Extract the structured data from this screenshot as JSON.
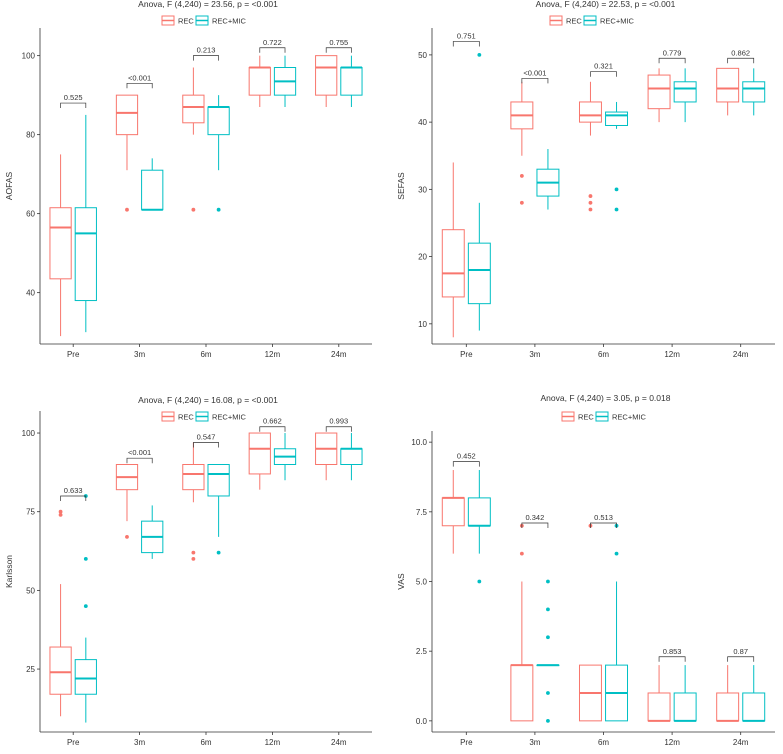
{
  "colors": {
    "rec": "#F8766D",
    "rec_mic": "#00BFC4",
    "axis": "#333333"
  },
  "chart_data": [
    {
      "type": "box",
      "title": "Anova, F (4,240) = 23.56, p = <0.001",
      "ylabel": "AOFAS",
      "legend": [
        "REC",
        "REC+MIC"
      ],
      "categories": [
        "Pre",
        "3m",
        "6m",
        "12m",
        "24m"
      ],
      "ylim": [
        27,
        107
      ],
      "yticks": [
        40,
        60,
        80,
        100
      ],
      "ytick_labels": [
        "40",
        "60",
        "80",
        "100"
      ],
      "series": [
        {
          "name": "REC",
          "boxes": [
            {
              "min": 29,
              "q1": 43.5,
              "median": 56.5,
              "q3": 61.5,
              "max": 75,
              "outliers": []
            },
            {
              "min": 71,
              "q1": 80,
              "median": 85.5,
              "q3": 90,
              "max": 90,
              "outliers": [
                61
              ]
            },
            {
              "min": 80,
              "q1": 83,
              "median": 87,
              "q3": 90,
              "max": 97,
              "outliers": [
                61
              ]
            },
            {
              "min": 87,
              "q1": 90,
              "median": 97,
              "q3": 97,
              "max": 100,
              "outliers": []
            },
            {
              "min": 87,
              "q1": 90,
              "median": 97,
              "q3": 100,
              "max": 100,
              "outliers": []
            }
          ]
        },
        {
          "name": "REC+MIC",
          "boxes": [
            {
              "min": 30,
              "q1": 38,
              "median": 55,
              "q3": 61.5,
              "max": 85,
              "outliers": []
            },
            {
              "min": 61,
              "q1": 61,
              "median": 61,
              "q3": 71,
              "max": 74,
              "outliers": []
            },
            {
              "min": 71,
              "q1": 80,
              "median": 87,
              "q3": 87,
              "max": 90,
              "outliers": [
                61
              ]
            },
            {
              "min": 87,
              "q1": 90,
              "median": 93.5,
              "q3": 97,
              "max": 100,
              "outliers": []
            },
            {
              "min": 87,
              "q1": 90,
              "median": 97,
              "q3": 97,
              "max": 100,
              "outliers": []
            }
          ]
        }
      ],
      "pvalues": [
        {
          "label": "0.525",
          "y": 88
        },
        {
          "label": "<0.001",
          "y": 93
        },
        {
          "label": "0.213",
          "y": 100
        },
        {
          "label": "0.722",
          "y": 102
        },
        {
          "label": "0.755",
          "y": 102
        }
      ]
    },
    {
      "type": "box",
      "title": "Anova, F (4,240) = 22.53, p = <0.001",
      "ylabel": "SEFAS",
      "legend": [
        "REC",
        "REC+MIC"
      ],
      "categories": [
        "Pre",
        "3m",
        "6m",
        "12m",
        "24m"
      ],
      "ylim": [
        7,
        54
      ],
      "yticks": [
        10,
        20,
        30,
        40,
        50
      ],
      "ytick_labels": [
        "10",
        "20",
        "30",
        "40",
        "50"
      ],
      "series": [
        {
          "name": "REC",
          "boxes": [
            {
              "min": 8,
              "q1": 14,
              "median": 17.5,
              "q3": 24,
              "max": 34,
              "outliers": []
            },
            {
              "min": 35,
              "q1": 39,
              "median": 41,
              "q3": 43,
              "max": 46,
              "outliers": [
                32,
                28
              ]
            },
            {
              "min": 38,
              "q1": 40,
              "median": 41,
              "q3": 43,
              "max": 46,
              "outliers": [
                29,
                28,
                27
              ]
            },
            {
              "min": 40,
              "q1": 42,
              "median": 45,
              "q3": 47,
              "max": 48,
              "outliers": []
            },
            {
              "min": 41,
              "q1": 43,
              "median": 45,
              "q3": 48,
              "max": 48,
              "outliers": []
            }
          ]
        },
        {
          "name": "REC+MIC",
          "boxes": [
            {
              "min": 9,
              "q1": 13,
              "median": 18,
              "q3": 22,
              "max": 28,
              "outliers": [
                50
              ]
            },
            {
              "min": 27,
              "q1": 29,
              "median": 31,
              "q3": 33,
              "max": 36,
              "outliers": []
            },
            {
              "min": 39,
              "q1": 39.5,
              "median": 41,
              "q3": 41.5,
              "max": 43,
              "outliers": [
                30,
                27
              ]
            },
            {
              "min": 40,
              "q1": 43,
              "median": 45,
              "q3": 46,
              "max": 48,
              "outliers": []
            },
            {
              "min": 41,
              "q1": 43,
              "median": 45,
              "q3": 46,
              "max": 48,
              "outliers": []
            }
          ]
        }
      ],
      "pvalues": [
        {
          "label": "0.751",
          "y": 52
        },
        {
          "label": "<0.001",
          "y": 46.5
        },
        {
          "label": "0.321",
          "y": 47.5
        },
        {
          "label": "0.779",
          "y": 49.5
        },
        {
          "label": "0.862",
          "y": 49.5
        }
      ]
    },
    {
      "type": "box",
      "title": "Anova, F (4,240) = 16.08, p = <0.001",
      "ylabel": "Karlsson",
      "legend": [
        "REC",
        "REC+MIC"
      ],
      "categories": [
        "Pre",
        "3m",
        "6m",
        "12m",
        "24m"
      ],
      "ylim": [
        5,
        107
      ],
      "yticks": [
        25,
        50,
        75,
        100
      ],
      "ytick_labels": [
        "25",
        "50",
        "75",
        "100"
      ],
      "series": [
        {
          "name": "REC",
          "boxes": [
            {
              "min": 10,
              "q1": 17,
              "median": 24,
              "q3": 32,
              "max": 52,
              "outliers": [
                75,
                74
              ]
            },
            {
              "min": 72,
              "q1": 82,
              "median": 86,
              "q3": 90,
              "max": 90,
              "outliers": [
                67
              ]
            },
            {
              "min": 78,
              "q1": 82,
              "median": 87,
              "q3": 90,
              "max": 97,
              "outliers": [
                62,
                60
              ]
            },
            {
              "min": 82,
              "q1": 87,
              "median": 95,
              "q3": 100,
              "max": 100,
              "outliers": []
            },
            {
              "min": 85,
              "q1": 90,
              "median": 95,
              "q3": 100,
              "max": 100,
              "outliers": []
            }
          ]
        },
        {
          "name": "REC+MIC",
          "boxes": [
            {
              "min": 8,
              "q1": 17,
              "median": 22,
              "q3": 28,
              "max": 35,
              "outliers": [
                80,
                60,
                45
              ]
            },
            {
              "min": 60,
              "q1": 62,
              "median": 67,
              "q3": 72,
              "max": 77,
              "outliers": []
            },
            {
              "min": 67,
              "q1": 80,
              "median": 87,
              "q3": 90,
              "max": 90,
              "outliers": [
                62
              ]
            },
            {
              "min": 85,
              "q1": 90,
              "median": 92.5,
              "q3": 95,
              "max": 100,
              "outliers": []
            },
            {
              "min": 85,
              "q1": 90,
              "median": 95,
              "q3": 95,
              "max": 100,
              "outliers": []
            }
          ]
        }
      ],
      "pvalues": [
        {
          "label": "0.633",
          "y": 80
        },
        {
          "label": "<0.001",
          "y": 92
        },
        {
          "label": "0.547",
          "y": 97
        },
        {
          "label": "0.662",
          "y": 102
        },
        {
          "label": "0.993",
          "y": 102
        }
      ]
    },
    {
      "type": "box",
      "title": "Anova, F (4,240) = 3.05, p = 0.018",
      "ylabel": "VAS",
      "legend": [
        "REC",
        "REC+MIC"
      ],
      "categories": [
        "Pre",
        "3m",
        "6m",
        "12m",
        "24m"
      ],
      "ylim": [
        -0.4,
        10.4
      ],
      "yticks": [
        0,
        2.5,
        5,
        7.5,
        10
      ],
      "ytick_labels": [
        "0.0",
        "2.5",
        "5.0",
        "7.5",
        "10.0"
      ],
      "series": [
        {
          "name": "REC",
          "boxes": [
            {
              "min": 6,
              "q1": 7,
              "median": 8,
              "q3": 8,
              "max": 9,
              "outliers": []
            },
            {
              "min": 0,
              "q1": 0,
              "median": 2,
              "q3": 2,
              "max": 5,
              "outliers": [
                7,
                6
              ]
            },
            {
              "min": 0,
              "q1": 0,
              "median": 1,
              "q3": 2,
              "max": 2,
              "outliers": [
                7
              ]
            },
            {
              "min": 0,
              "q1": 0,
              "median": 0,
              "q3": 1,
              "max": 2,
              "outliers": []
            },
            {
              "min": 0,
              "q1": 0,
              "median": 0,
              "q3": 1,
              "max": 2,
              "outliers": []
            }
          ]
        },
        {
          "name": "REC+MIC",
          "boxes": [
            {
              "min": 6,
              "q1": 7,
              "median": 7,
              "q3": 8,
              "max": 9,
              "outliers": [
                5
              ]
            },
            {
              "min": 2,
              "q1": 2,
              "median": 2,
              "q3": 2,
              "max": 2,
              "outliers": [
                5,
                4,
                3,
                1,
                0
              ]
            },
            {
              "min": 0,
              "q1": 0,
              "median": 1,
              "q3": 2,
              "max": 5,
              "outliers": [
                7,
                6
              ]
            },
            {
              "min": 0,
              "q1": 0,
              "median": 0,
              "q3": 1,
              "max": 2,
              "outliers": []
            },
            {
              "min": 0,
              "q1": 0,
              "median": 0,
              "q3": 1,
              "max": 2,
              "outliers": []
            }
          ]
        }
      ],
      "pvalues": [
        {
          "label": "0.452",
          "y": 9.3
        },
        {
          "label": "0.342",
          "y": 7.1
        },
        {
          "label": "0.513",
          "y": 7.1
        },
        {
          "label": "0.853",
          "y": 2.3
        },
        {
          "label": "0.87",
          "y": 2.3
        }
      ]
    }
  ]
}
